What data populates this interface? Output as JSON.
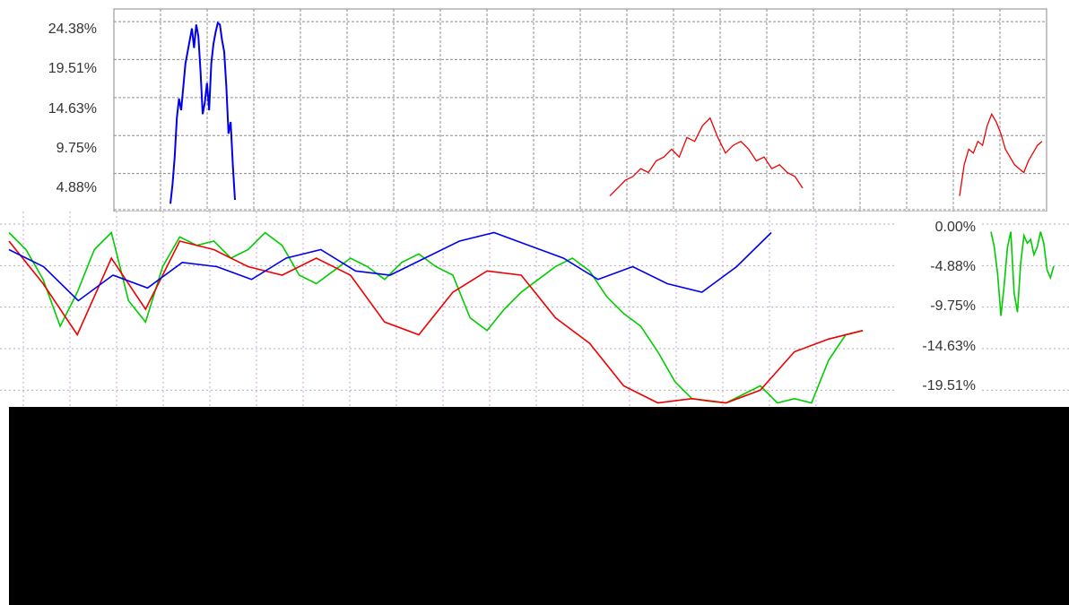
{
  "chart_data": [
    {
      "type": "line",
      "panel": "top",
      "y_tick_labels": [
        "24.38%",
        "19.51%",
        "14.63%",
        "9.75%",
        "4.88%"
      ],
      "y_tick_values": [
        24.38,
        19.51,
        14.63,
        9.75,
        4.88
      ],
      "ylim": [
        0,
        26
      ],
      "grid": true,
      "series": [
        {
          "color": "#0000ee",
          "x": [
            0.0,
            0.02,
            0.04,
            0.06,
            0.08,
            0.1,
            0.12,
            0.14,
            0.16,
            0.18,
            0.2,
            0.22,
            0.24,
            0.26,
            0.28,
            0.3,
            0.32,
            0.34,
            0.36,
            0.38,
            0.4,
            0.42,
            0.44,
            0.46,
            0.48,
            0.5,
            0.52,
            0.54,
            0.56,
            0.58,
            0.6
          ],
          "values": [
            1.0,
            3.5,
            7.0,
            12.0,
            14.5,
            13.0,
            16.0,
            19.0,
            20.5,
            22.0,
            23.5,
            21.0,
            24.0,
            22.5,
            18.0,
            12.5,
            14.0,
            16.5,
            13.0,
            19.0,
            21.5,
            23.0,
            24.2,
            24.0,
            22.0,
            20.5,
            16.0,
            10.0,
            11.5,
            6.0,
            1.5
          ]
        },
        {
          "color": "#ee0000",
          "x": [
            0.0,
            0.02,
            0.04,
            0.06,
            0.08,
            0.1,
            0.12,
            0.14,
            0.16,
            0.18,
            0.2,
            0.22,
            0.24,
            0.26,
            0.28,
            0.3,
            0.32,
            0.34,
            0.36,
            0.38,
            0.4,
            0.42,
            0.44,
            0.46,
            0.48,
            0.5
          ],
          "values": [
            2.0,
            3.0,
            4.0,
            4.5,
            5.5,
            5.0,
            6.5,
            7.0,
            8.0,
            7.0,
            9.5,
            9.0,
            11.0,
            12.0,
            9.5,
            7.5,
            8.5,
            9.0,
            8.0,
            6.5,
            7.0,
            5.5,
            6.0,
            5.0,
            4.5,
            3.0
          ]
        },
        {
          "color": "#ee0000",
          "x": [
            0.0,
            0.05,
            0.1,
            0.15,
            0.2,
            0.25,
            0.3,
            0.35,
            0.4,
            0.45,
            0.5,
            0.55,
            0.6,
            0.65,
            0.7,
            0.75,
            0.8,
            0.85,
            0.9
          ],
          "values": [
            2.0,
            6.0,
            8.0,
            7.5,
            9.0,
            8.5,
            11.0,
            12.5,
            11.5,
            10.0,
            8.0,
            7.0,
            6.0,
            5.5,
            5.0,
            6.5,
            7.5,
            8.5,
            9.0
          ]
        }
      ]
    },
    {
      "type": "line",
      "panel": "bottom",
      "y_tick_labels": [
        "0.00%",
        "-4.88%",
        "-9.75%",
        "-14.63%",
        "-19.51%"
      ],
      "y_tick_values": [
        0.0,
        -4.88,
        -9.75,
        -14.63,
        -19.51
      ],
      "ylim": [
        -21,
        1
      ],
      "grid": true,
      "series": [
        {
          "color": "#00cc00",
          "x": [
            0.0,
            0.02,
            0.04,
            0.06,
            0.08,
            0.1,
            0.12,
            0.14,
            0.16,
            0.18,
            0.2,
            0.22,
            0.24,
            0.26,
            0.28,
            0.3,
            0.32,
            0.34,
            0.36,
            0.38,
            0.4,
            0.42,
            0.44,
            0.46,
            0.48,
            0.5,
            0.52,
            0.54,
            0.56,
            0.58,
            0.6,
            0.62,
            0.64,
            0.66,
            0.68,
            0.7,
            0.72,
            0.74,
            0.76,
            0.78,
            0.8,
            0.82,
            0.84,
            0.86,
            0.88,
            0.9,
            0.92,
            0.94,
            0.96,
            0.98,
            1.0
          ],
          "values": [
            -1.0,
            -3.0,
            -6.5,
            -12.0,
            -8.0,
            -3.0,
            -1.0,
            -9.0,
            -11.5,
            -5.0,
            -1.5,
            -2.5,
            -2.0,
            -4.0,
            -3.0,
            -1.0,
            -2.5,
            -6.0,
            -7.0,
            -5.5,
            -4.0,
            -5.0,
            -6.5,
            -4.5,
            -3.5,
            -5.0,
            -6.0,
            -11.0,
            -12.5,
            -10.0,
            -8.0,
            -6.5,
            -5.0,
            -4.0,
            -5.5,
            -8.5,
            -10.5,
            -12.0,
            -15.0,
            -18.5,
            -20.5,
            -20.8,
            -21.0,
            -20.0,
            -19.0,
            -21.0,
            -20.5,
            -21.0,
            -16.0,
            -13.0,
            -12.5
          ]
        },
        {
          "color": "#ee0000",
          "x": [
            0.0,
            0.04,
            0.08,
            0.12,
            0.16,
            0.2,
            0.24,
            0.28,
            0.32,
            0.36,
            0.4,
            0.44,
            0.48,
            0.52,
            0.56,
            0.6,
            0.64,
            0.68,
            0.72,
            0.76,
            0.8,
            0.84,
            0.88,
            0.92,
            0.96,
            1.0
          ],
          "values": [
            -2.0,
            -7.0,
            -13.0,
            -4.0,
            -10.0,
            -2.0,
            -3.0,
            -5.0,
            -6.0,
            -4.0,
            -6.0,
            -11.5,
            -13.0,
            -8.0,
            -5.5,
            -6.0,
            -11.0,
            -14.0,
            -19.0,
            -21.0,
            -20.5,
            -21.0,
            -19.5,
            -15.0,
            -13.5,
            -12.5
          ]
        },
        {
          "color": "#0000ee",
          "x": [
            0.0,
            0.04,
            0.08,
            0.12,
            0.16,
            0.2,
            0.24,
            0.28,
            0.32,
            0.36,
            0.4,
            0.44,
            0.48,
            0.52,
            0.56,
            0.6,
            0.64,
            0.68,
            0.72,
            0.76,
            0.8,
            0.84,
            0.88
          ],
          "values": [
            -3.0,
            -5.0,
            -9.0,
            -6.0,
            -7.5,
            -4.5,
            -5.0,
            -6.5,
            -4.0,
            -3.0,
            -5.5,
            -6.0,
            -4.0,
            -2.0,
            -1.0,
            -2.5,
            -4.0,
            -6.5,
            -5.0,
            -7.0,
            -8.0,
            -5.0,
            -1.0
          ]
        }
      ]
    }
  ]
}
